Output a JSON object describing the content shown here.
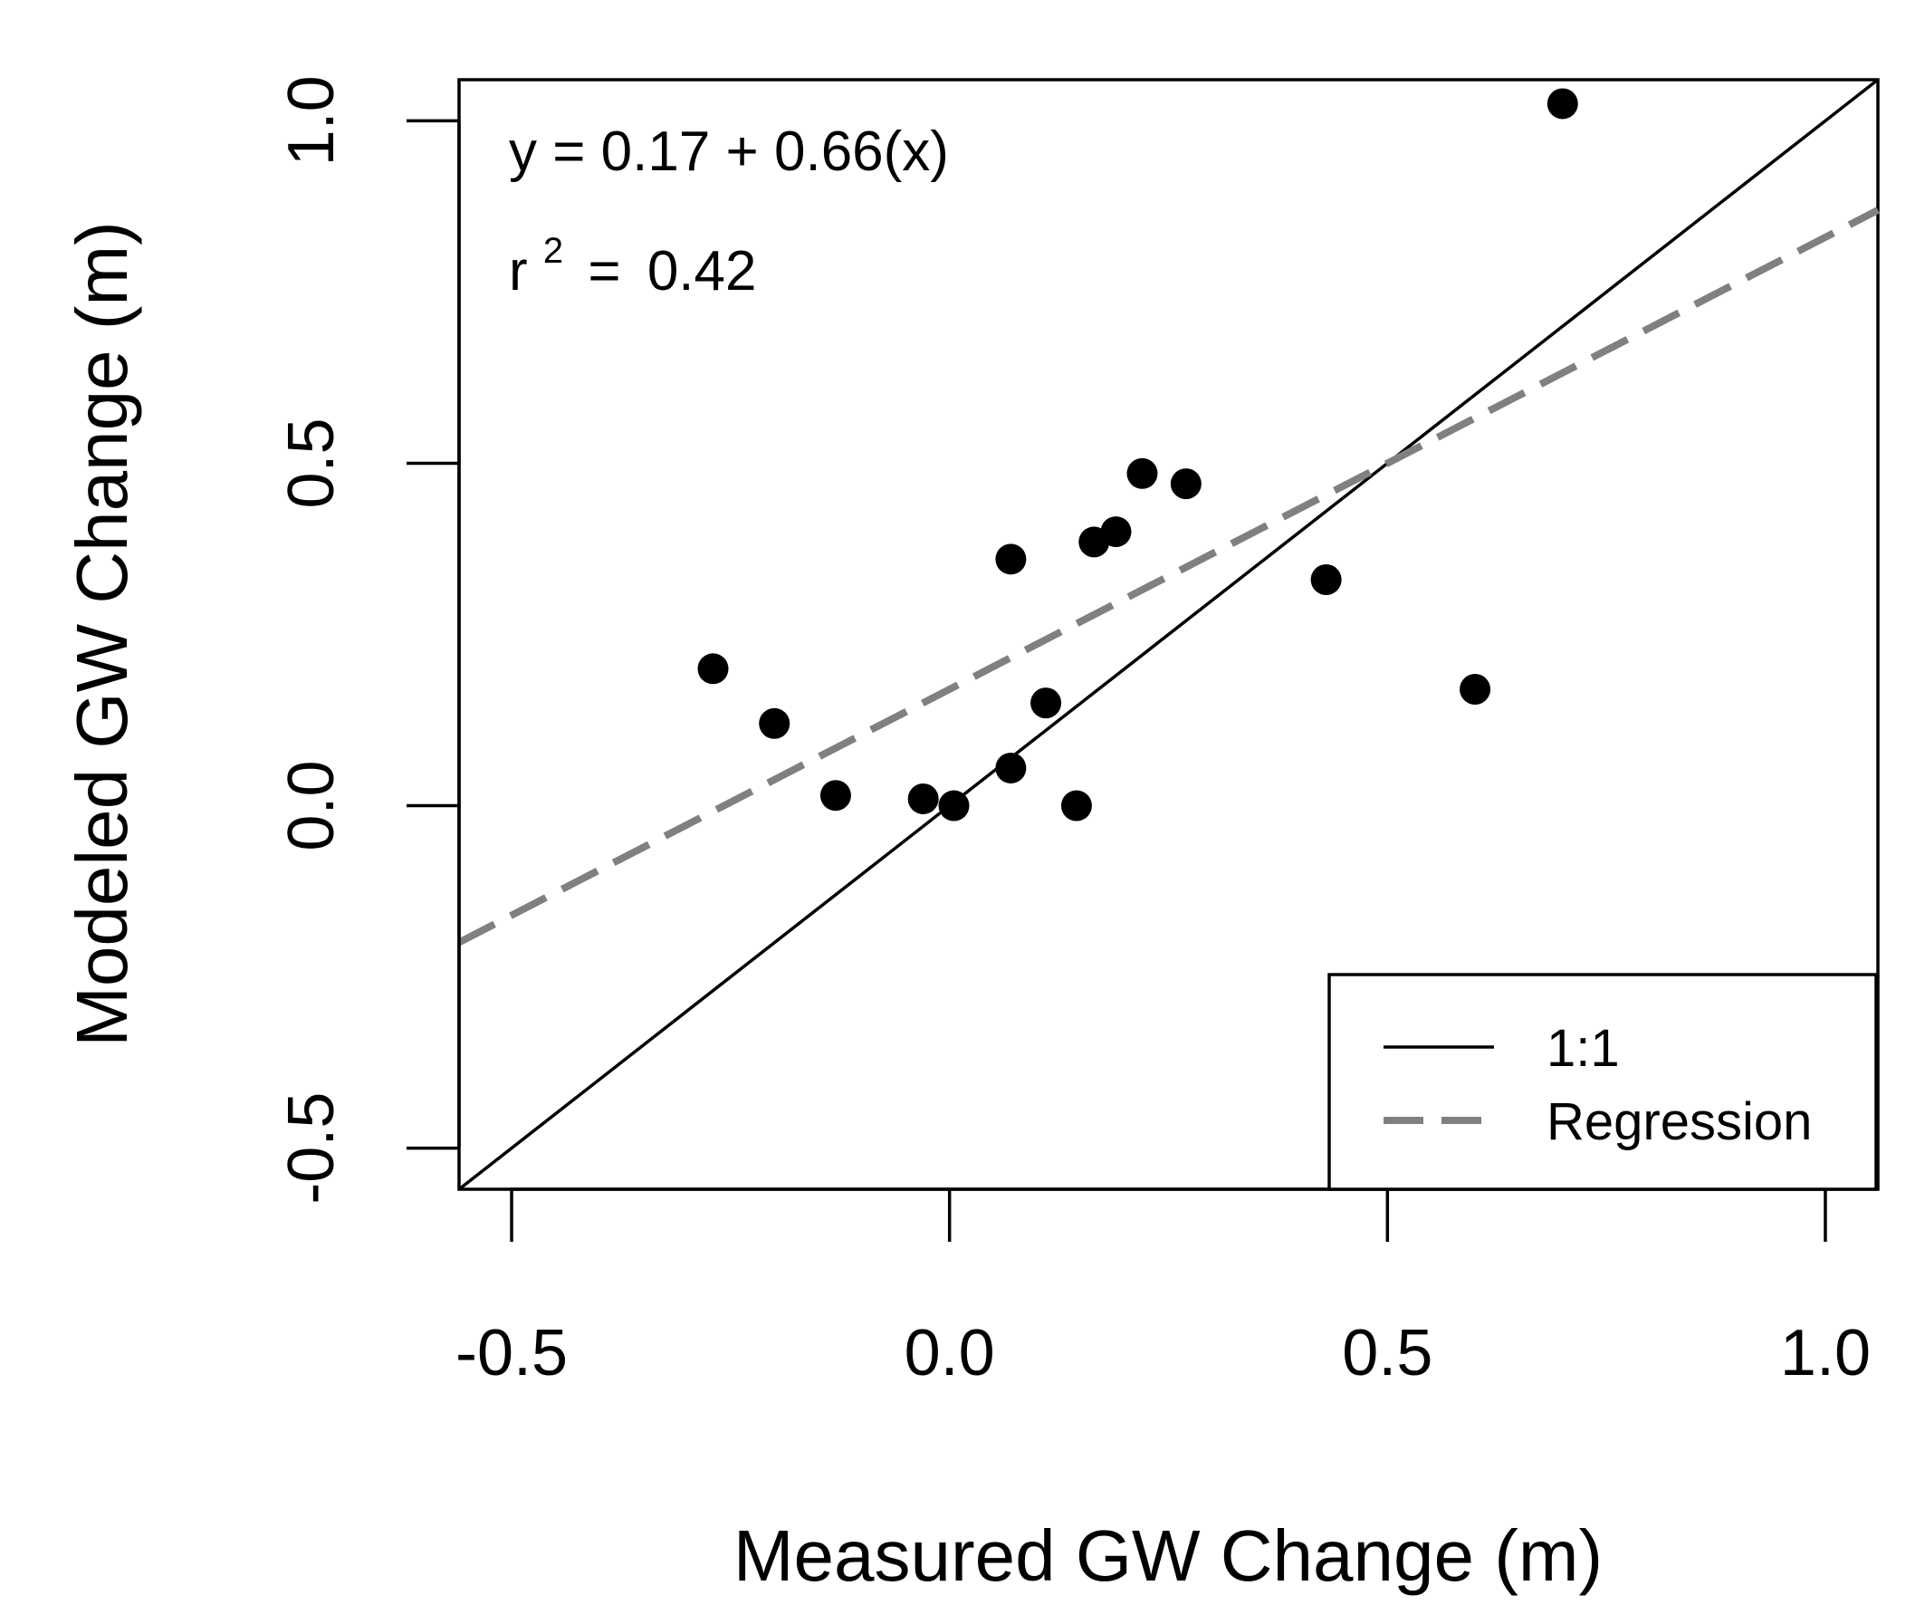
{
  "chart_data": {
    "type": "scatter",
    "title": "",
    "xlabel": "Measured GW Change (m)",
    "ylabel": "Modeled GW Change (m)",
    "xlim": [
      -0.56,
      1.06
    ],
    "ylim": [
      -0.56,
      1.06
    ],
    "x_ticks": [
      -0.5,
      0.0,
      0.5,
      1.0
    ],
    "x_tick_labels": [
      "-0.5",
      "0.0",
      "0.5",
      "1.0"
    ],
    "y_ticks": [
      -0.5,
      0.0,
      0.5,
      1.0
    ],
    "y_tick_labels": [
      "-0.5",
      "0.0",
      "0.5",
      "1.0"
    ],
    "grid": false,
    "points": [
      {
        "x": -0.27,
        "y": 0.2
      },
      {
        "x": -0.2,
        "y": 0.12
      },
      {
        "x": -0.13,
        "y": 0.015
      },
      {
        "x": -0.03,
        "y": 0.01
      },
      {
        "x": 0.005,
        "y": 0.0
      },
      {
        "x": 0.07,
        "y": 0.36
      },
      {
        "x": 0.07,
        "y": 0.055
      },
      {
        "x": 0.11,
        "y": 0.15
      },
      {
        "x": 0.145,
        "y": 0.0
      },
      {
        "x": 0.165,
        "y": 0.385
      },
      {
        "x": 0.19,
        "y": 0.4
      },
      {
        "x": 0.22,
        "y": 0.485
      },
      {
        "x": 0.27,
        "y": 0.47
      },
      {
        "x": 0.43,
        "y": 0.33
      },
      {
        "x": 0.6,
        "y": 0.17
      },
      {
        "x": 0.7,
        "y": 1.025
      }
    ],
    "lines": [
      {
        "name": "1:1",
        "intercept": 0.0,
        "slope": 1.0,
        "color": "#000000",
        "style": "solid"
      },
      {
        "name": "Regression",
        "intercept": 0.17,
        "slope": 0.66,
        "color": "#808080",
        "style": "dashed"
      }
    ],
    "annotations": {
      "equation": "y = 0.17 + 0.66(x)",
      "r2_label": "r",
      "r2_exponent": "2",
      "r2_equals": "=",
      "r2_value": "0.42"
    },
    "legend": {
      "position": "bottom-right",
      "entries": [
        "1:1",
        "Regression"
      ]
    }
  }
}
